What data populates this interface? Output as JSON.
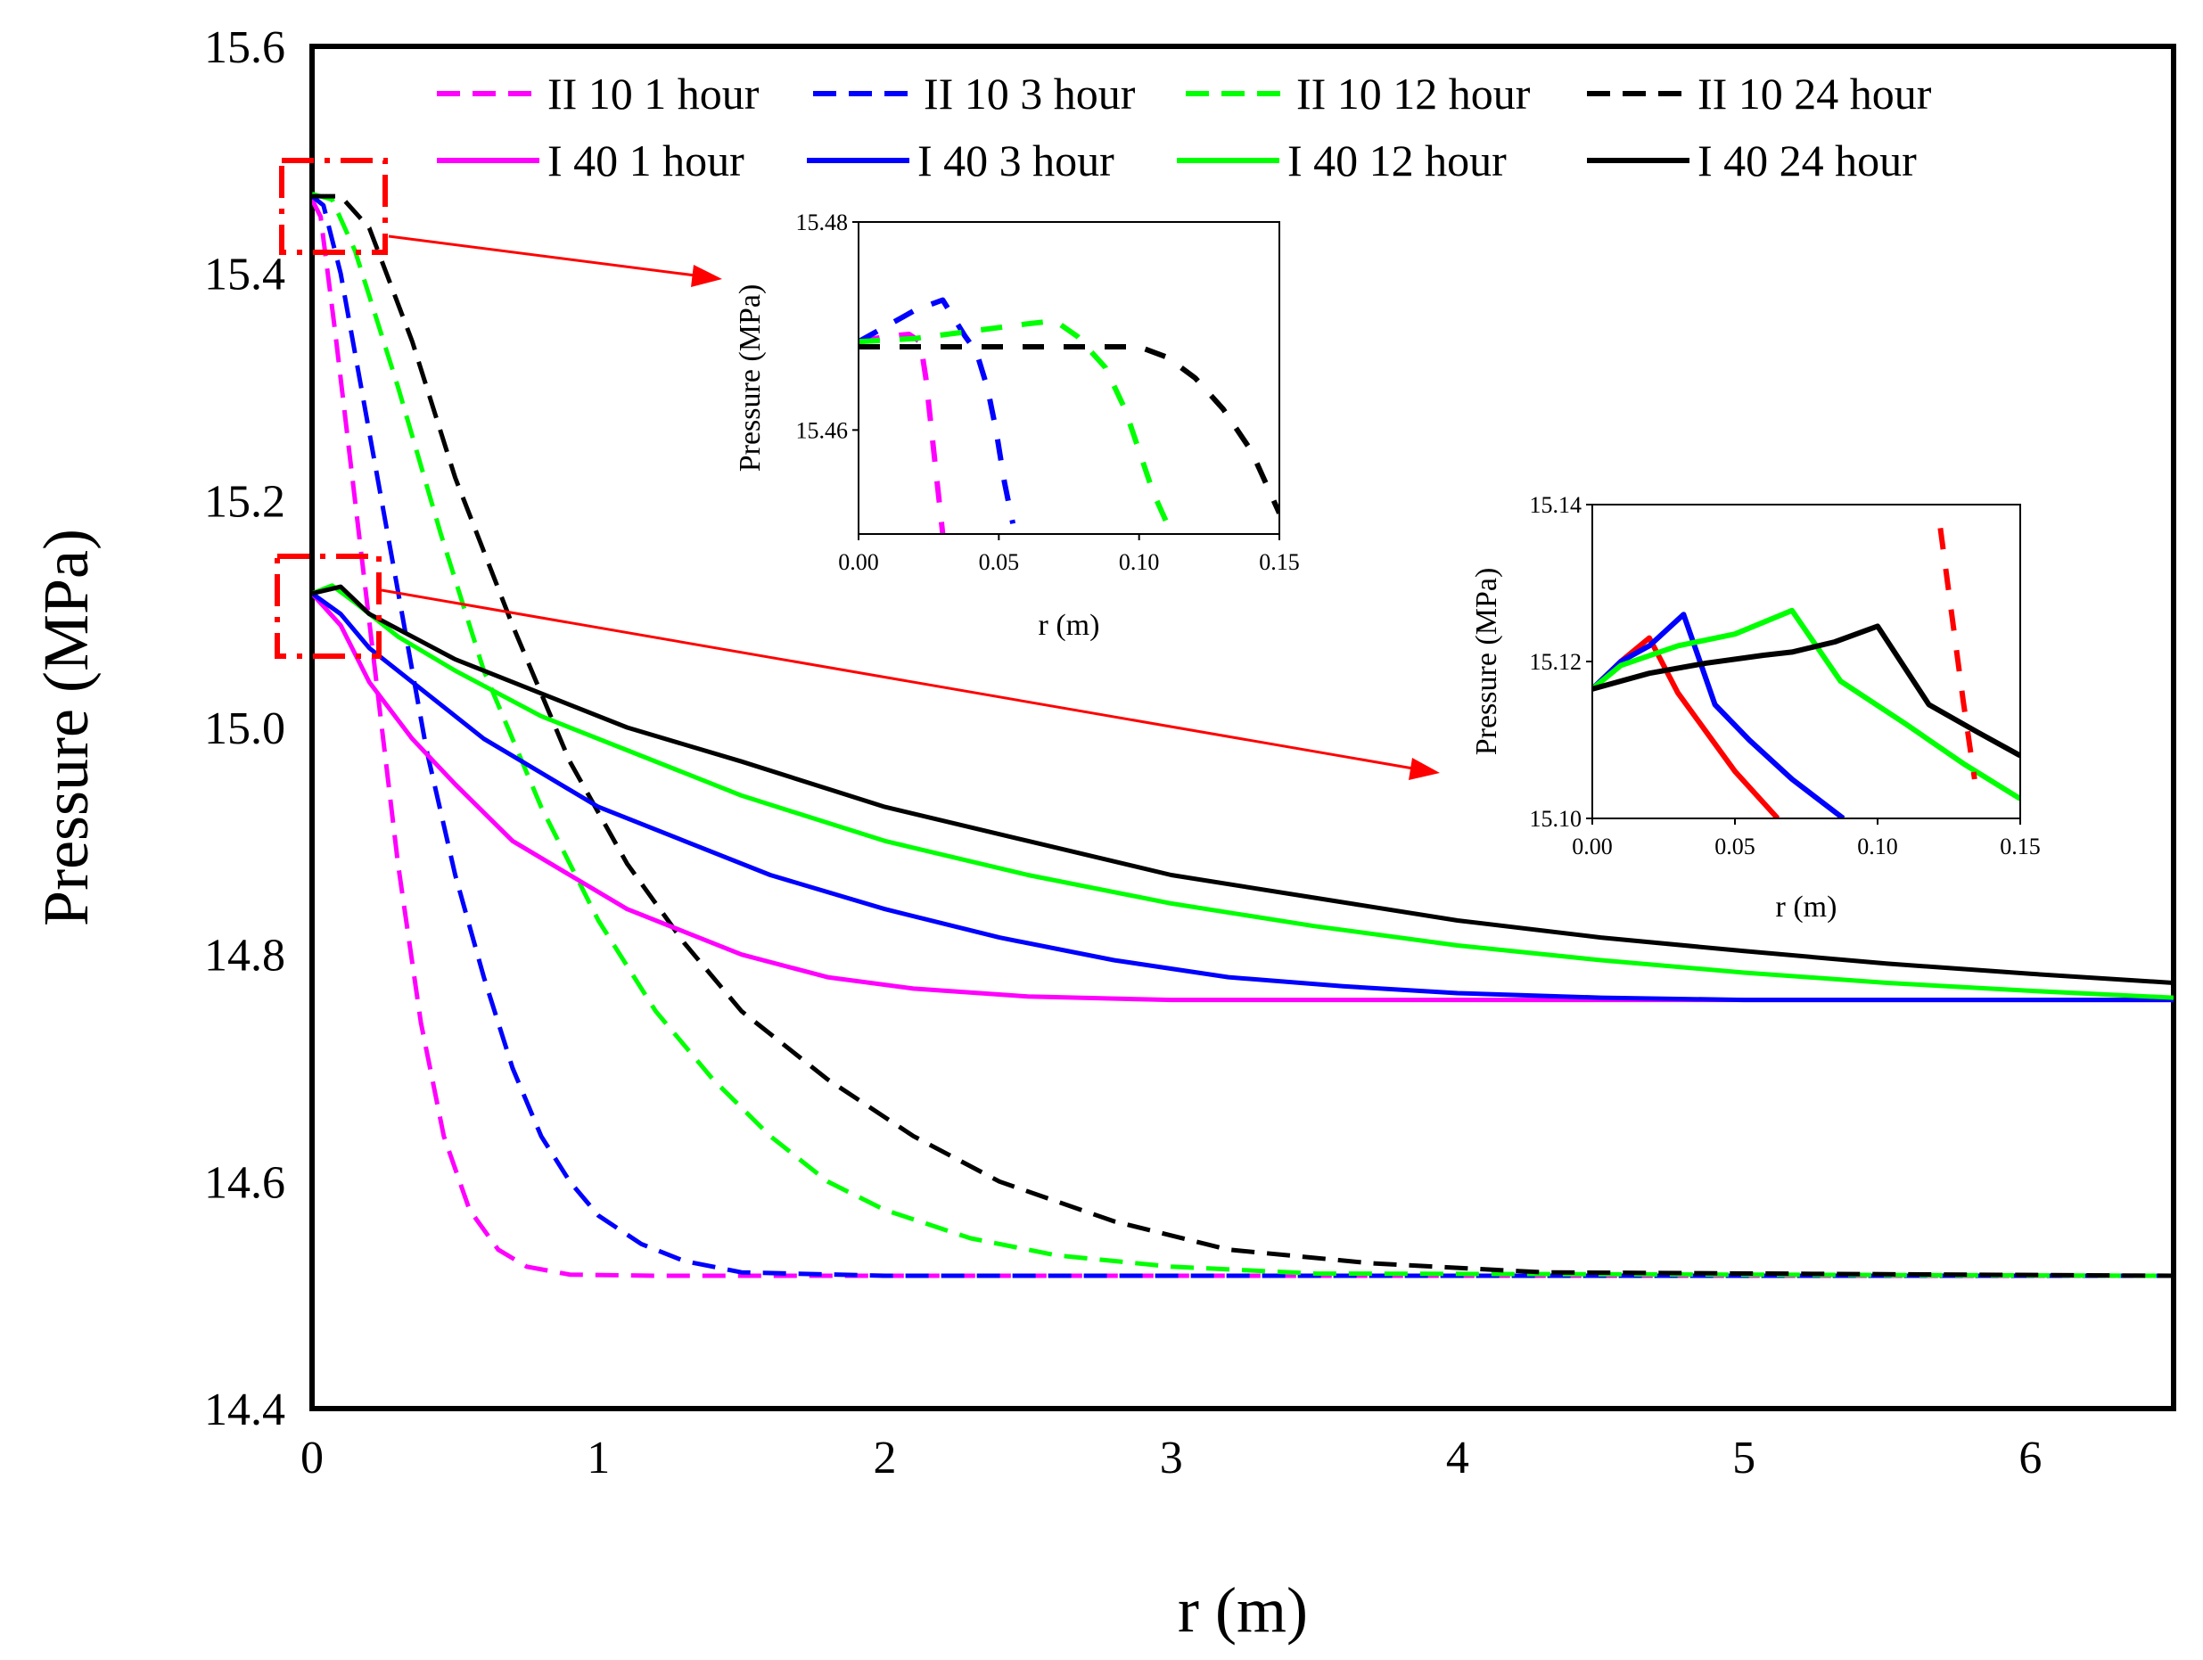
{
  "chart_data": [
    {
      "type": "line",
      "name": "main",
      "title": "",
      "xlabel": "r (m)",
      "ylabel": "Pressure (MPa)",
      "xlim": [
        0,
        6.5
      ],
      "ylim": [
        14.4,
        15.6
      ],
      "xticks": [
        "0",
        "1",
        "2",
        "3",
        "4",
        "5",
        "6"
      ],
      "yticks": [
        "14.4",
        "14.6",
        "14.8",
        "15.0",
        "15.2",
        "15.4",
        "15.6"
      ],
      "legend": {
        "placement": "top",
        "entries": [
          "II 10 1 hour",
          "II 10 3 hour",
          "II 10 12 hour",
          "II 10 24 hour",
          "I 40 1 hour",
          "I 40 3 hour",
          "I 40 12 hour",
          "I 40 24 hour"
        ]
      },
      "series": [
        {
          "name": "II 10 1 hour",
          "color": "#ff00ff",
          "style": "dashed",
          "x": [
            0,
            0.03,
            0.08,
            0.15,
            0.22,
            0.3,
            0.38,
            0.46,
            0.55,
            0.65,
            0.75,
            0.9,
            1.2,
            2,
            6.5
          ],
          "y": [
            15.465,
            15.45,
            15.35,
            15.2,
            15.05,
            14.88,
            14.74,
            14.64,
            14.575,
            14.54,
            14.525,
            14.518,
            14.517,
            14.517,
            14.517
          ]
        },
        {
          "name": "II 10 3 hour",
          "color": "#0000ff",
          "style": "dashed",
          "x": [
            0,
            0.04,
            0.1,
            0.2,
            0.3,
            0.4,
            0.5,
            0.6,
            0.7,
            0.8,
            0.9,
            1.0,
            1.15,
            1.3,
            1.5,
            2,
            6.5
          ],
          "y": [
            15.468,
            15.46,
            15.4,
            15.26,
            15.12,
            14.98,
            14.87,
            14.78,
            14.7,
            14.64,
            14.6,
            14.57,
            14.545,
            14.53,
            14.52,
            14.517,
            14.517
          ]
        },
        {
          "name": "II 10 12 hour",
          "color": "#00ff00",
          "style": "dashed",
          "x": [
            0,
            0.07,
            0.15,
            0.3,
            0.45,
            0.6,
            0.8,
            1.0,
            1.2,
            1.4,
            1.6,
            1.8,
            2.0,
            2.3,
            2.6,
            3.0,
            3.5,
            6.5
          ],
          "y": [
            15.47,
            15.465,
            15.42,
            15.3,
            15.17,
            15.05,
            14.93,
            14.83,
            14.75,
            14.69,
            14.64,
            14.6,
            14.575,
            14.55,
            14.535,
            14.525,
            14.519,
            14.517
          ]
        },
        {
          "name": "II 10 24 hour",
          "color": "#000000",
          "style": "dashed",
          "x": [
            0,
            0.1,
            0.2,
            0.35,
            0.5,
            0.7,
            0.9,
            1.1,
            1.3,
            1.5,
            1.8,
            2.1,
            2.4,
            2.8,
            3.2,
            3.7,
            4.3,
            6.5
          ],
          "y": [
            15.468,
            15.468,
            15.44,
            15.34,
            15.22,
            15.09,
            14.97,
            14.88,
            14.81,
            14.75,
            14.69,
            14.64,
            14.6,
            14.565,
            14.54,
            14.528,
            14.52,
            14.517
          ]
        },
        {
          "name": "I 40 1 hour",
          "color": "#ff00ff",
          "style": "solid",
          "x": [
            0,
            0.1,
            0.2,
            0.35,
            0.5,
            0.7,
            0.9,
            1.1,
            1.3,
            1.5,
            1.8,
            2.1,
            2.5,
            3.0,
            3.5,
            4.5,
            6.5
          ],
          "y": [
            15.118,
            15.09,
            15.04,
            14.99,
            14.95,
            14.9,
            14.87,
            14.84,
            14.82,
            14.8,
            14.78,
            14.77,
            14.763,
            14.76,
            14.76,
            14.76,
            14.76
          ]
        },
        {
          "name": "I 40 3 hour",
          "color": "#0000ff",
          "style": "solid",
          "x": [
            0,
            0.1,
            0.2,
            0.4,
            0.6,
            0.8,
            1.0,
            1.3,
            1.6,
            2.0,
            2.4,
            2.8,
            3.2,
            3.6,
            4.0,
            4.5,
            5.0,
            6.5
          ],
          "y": [
            15.118,
            15.1,
            15.07,
            15.03,
            14.99,
            14.96,
            14.93,
            14.9,
            14.87,
            14.84,
            14.815,
            14.795,
            14.78,
            14.772,
            14.766,
            14.762,
            14.76,
            14.76
          ]
        },
        {
          "name": "I 40 12 hour",
          "color": "#00ff00",
          "style": "solid",
          "x": [
            0,
            0.07,
            0.15,
            0.3,
            0.5,
            0.8,
            1.1,
            1.5,
            2.0,
            2.5,
            3.0,
            3.5,
            4.0,
            4.5,
            5.0,
            5.5,
            6.0,
            6.5
          ],
          "y": [
            15.118,
            15.125,
            15.11,
            15.08,
            15.05,
            15.01,
            14.98,
            14.94,
            14.9,
            14.87,
            14.845,
            14.825,
            14.808,
            14.795,
            14.784,
            14.775,
            14.768,
            14.762
          ]
        },
        {
          "name": "I 40 24 hour",
          "color": "#000000",
          "style": "solid",
          "x": [
            0,
            0.1,
            0.2,
            0.35,
            0.5,
            0.8,
            1.1,
            1.5,
            2.0,
            2.5,
            3.0,
            3.5,
            4.0,
            4.5,
            5.0,
            5.5,
            6.0,
            6.5
          ],
          "y": [
            15.118,
            15.124,
            15.1,
            15.08,
            15.06,
            15.03,
            15.0,
            14.97,
            14.93,
            14.9,
            14.87,
            14.85,
            14.83,
            14.815,
            14.803,
            14.792,
            14.783,
            14.775
          ]
        }
      ],
      "annotations": [
        {
          "type": "zoom-box",
          "x_range": [
            0,
            0.25
          ],
          "y_range": [
            15.42,
            15.5
          ],
          "arrow_to": "inset-top"
        },
        {
          "type": "zoom-box",
          "x_range": [
            0,
            0.22
          ],
          "y_range": [
            15.06,
            15.16
          ],
          "arrow_to": "inset-bottom"
        }
      ]
    },
    {
      "type": "line",
      "name": "inset-top",
      "xlabel": "r (m)",
      "ylabel": "Pressure (MPa)",
      "xlim": [
        0,
        0.15
      ],
      "ylim": [
        15.45,
        15.48
      ],
      "xticks": [
        "0.00",
        "0.05",
        "0.10",
        "0.15"
      ],
      "yticks": [
        "15.46",
        "15.48"
      ],
      "series": [
        {
          "name": "II 10 1 hour",
          "color": "#ff00ff",
          "style": "dashed",
          "x": [
            0,
            0.01,
            0.018,
            0.022,
            0.024,
            0.026,
            0.028,
            0.03
          ],
          "y": [
            15.4685,
            15.469,
            15.4692,
            15.4685,
            15.465,
            15.46,
            15.455,
            15.45
          ]
        },
        {
          "name": "II 10 3 hour",
          "color": "#0000ff",
          "style": "dashed",
          "x": [
            0,
            0.01,
            0.02,
            0.03,
            0.038,
            0.042,
            0.046,
            0.049,
            0.052,
            0.055
          ],
          "y": [
            15.4685,
            15.47,
            15.4715,
            15.4725,
            15.469,
            15.4675,
            15.464,
            15.46,
            15.455,
            15.451
          ]
        },
        {
          "name": "II 10 12 hour",
          "color": "#00ff00",
          "style": "dashed",
          "x": [
            0,
            0.02,
            0.04,
            0.06,
            0.07,
            0.078,
            0.088,
            0.095,
            0.1,
            0.105,
            0.11
          ],
          "y": [
            15.4685,
            15.4688,
            15.4695,
            15.4702,
            15.4705,
            15.469,
            15.466,
            15.462,
            15.458,
            15.454,
            15.451
          ]
        },
        {
          "name": "II 10 24 hour",
          "color": "#000000",
          "style": "dashed",
          "x": [
            0,
            0.02,
            0.04,
            0.06,
            0.08,
            0.1,
            0.11,
            0.12,
            0.13,
            0.14,
            0.145,
            0.15
          ],
          "y": [
            15.468,
            15.468,
            15.468,
            15.468,
            15.468,
            15.468,
            15.467,
            15.465,
            15.462,
            15.458,
            15.455,
            15.452
          ]
        }
      ]
    },
    {
      "type": "line",
      "name": "inset-bottom",
      "xlabel": "r (m)",
      "ylabel": "Pressure (MPa)",
      "xlim": [
        0,
        0.15
      ],
      "ylim": [
        15.1,
        15.14
      ],
      "xticks": [
        "0.00",
        "0.05",
        "0.10",
        "0.15"
      ],
      "yticks": [
        "15.10",
        "15.12",
        "15.14"
      ],
      "series": [
        {
          "name": "1 hour",
          "color": "#ff0000",
          "style": "solid",
          "x": [
            0,
            0.01,
            0.02,
            0.03,
            0.04,
            0.05,
            0.065
          ],
          "y": [
            15.1165,
            15.12,
            15.123,
            15.116,
            15.111,
            15.106,
            15.1
          ]
        },
        {
          "name": "3 hour",
          "color": "#0000ff",
          "style": "solid",
          "x": [
            0,
            0.01,
            0.02,
            0.032,
            0.043,
            0.055,
            0.07,
            0.088
          ],
          "y": [
            15.1165,
            15.12,
            15.122,
            15.126,
            15.1145,
            15.11,
            15.105,
            15.1
          ]
        },
        {
          "name": "12 hour",
          "color": "#00ff00",
          "style": "solid",
          "x": [
            0,
            0.01,
            0.03,
            0.05,
            0.07,
            0.087,
            0.11,
            0.13,
            0.15
          ],
          "y": [
            15.1165,
            15.1195,
            15.122,
            15.1235,
            15.1265,
            15.1175,
            15.112,
            15.107,
            15.1025
          ]
        },
        {
          "name": "24 hour",
          "color": "#000000",
          "style": "solid",
          "x": [
            0,
            0.02,
            0.04,
            0.06,
            0.07,
            0.085,
            0.1,
            0.118,
            0.135,
            0.15
          ],
          "y": [
            15.1165,
            15.1185,
            15.1198,
            15.1208,
            15.1212,
            15.1225,
            15.1245,
            15.1145,
            15.111,
            15.108
          ]
        },
        {
          "name": "dashed",
          "color": "#ff0000",
          "style": "dashed",
          "x": [
            0.122,
            0.126,
            0.13,
            0.134
          ],
          "y": [
            15.137,
            15.126,
            15.115,
            15.105
          ]
        }
      ]
    }
  ]
}
